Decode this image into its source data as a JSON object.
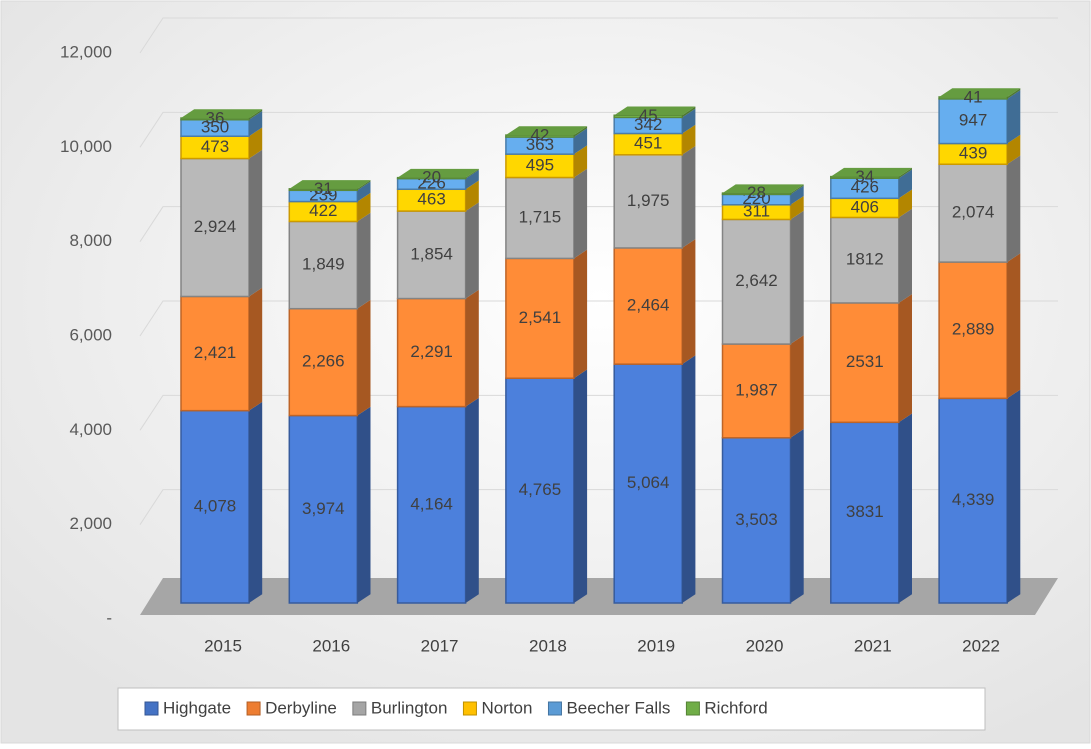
{
  "chart_data": {
    "type": "bar3d_stacked",
    "categories": [
      "2015",
      "2016",
      "2017",
      "2018",
      "2019",
      "2020",
      "2021",
      "2022"
    ],
    "series": [
      {
        "name": "Highgate",
        "color": "#4472c4",
        "values": [
          4078,
          3974,
          4164,
          4765,
          5064,
          3503,
          3831,
          4339
        ],
        "value_labels": [
          "4,078",
          "3,974",
          "4,164",
          "4,765",
          "5,064",
          "3,503",
          "3831",
          "4,339"
        ]
      },
      {
        "name": "Derbyline",
        "color": "#ed7d31",
        "values": [
          2421,
          2266,
          2291,
          2541,
          2464,
          1987,
          2531,
          2889
        ],
        "value_labels": [
          "2,421",
          "2,266",
          "2,291",
          "2,541",
          "2,464",
          "1,987",
          "2531",
          "2,889"
        ]
      },
      {
        "name": "Burlington",
        "color": "#a5a5a5",
        "values": [
          2924,
          1849,
          1854,
          1715,
          1975,
          2642,
          1812,
          2074
        ],
        "value_labels": [
          "2,924",
          "1,849",
          "1,854",
          "1,715",
          "1,975",
          "2,642",
          "1812",
          "2,074"
        ]
      },
      {
        "name": "Norton",
        "color": "#ffc000",
        "values": [
          473,
          422,
          463,
          495,
          451,
          311,
          406,
          439
        ]
      },
      {
        "name": "Beecher Falls",
        "color": "#5b9bd5",
        "values": [
          350,
          239,
          226,
          363,
          342,
          220,
          426,
          947
        ]
      },
      {
        "name": "Richford",
        "color": "#70ad47",
        "values": [
          36,
          31,
          20,
          42,
          45,
          28,
          34,
          41
        ]
      }
    ],
    "ylim": [
      0,
      12000
    ],
    "yticks": [
      {
        "value": 0,
        "label": "-"
      },
      {
        "value": 2000,
        "label": "2,000"
      },
      {
        "value": 4000,
        "label": "4,000"
      },
      {
        "value": 6000,
        "label": "6,000"
      },
      {
        "value": 8000,
        "label": "8,000"
      },
      {
        "value": 10000,
        "label": "10,000"
      },
      {
        "value": 12000,
        "label": "12,000"
      }
    ],
    "grid": true,
    "legend": "bottom"
  }
}
